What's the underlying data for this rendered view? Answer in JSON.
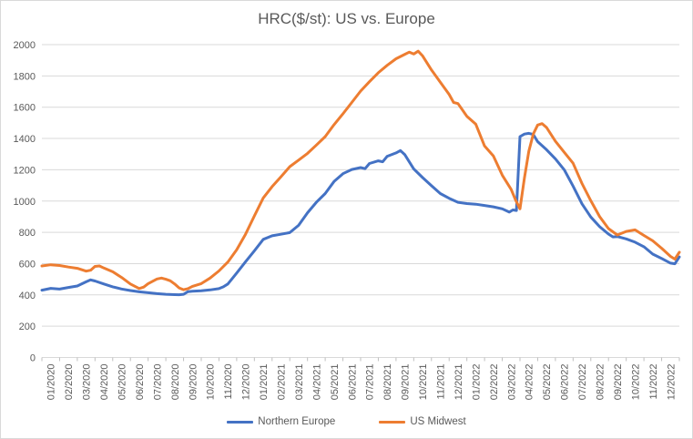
{
  "window": {
    "background": "#ffffff",
    "border_color": "#d9d9d9"
  },
  "chart_data": {
    "type": "line",
    "title": "HRC($/st): US vs. Europe",
    "title_color": "#595959",
    "axis_label_color": "#595959",
    "gridline_color": "#d9d9d9",
    "tick_color": "#bfbfbf",
    "grid": true,
    "legend_position": "bottom",
    "ylim": [
      0,
      2000
    ],
    "y_ticks": [
      0,
      200,
      400,
      600,
      800,
      1000,
      1200,
      1400,
      1600,
      1800,
      2000
    ],
    "x_unit": "month",
    "x_range_months": [
      0,
      36
    ],
    "x_labels": [
      "01/2020",
      "02/2020",
      "03/2020",
      "04/2020",
      "05/2020",
      "06/2020",
      "07/2020",
      "08/2020",
      "09/2020",
      "10/2020",
      "11/2020",
      "12/2020",
      "01/2021",
      "02/2021",
      "03/2021",
      "04/2021",
      "05/2021",
      "06/2021",
      "07/2021",
      "08/2021",
      "09/2021",
      "10/2021",
      "11/2021",
      "12/2021",
      "01/2022",
      "02/2022",
      "03/2022",
      "04/2022",
      "05/2022",
      "06/2022",
      "07/2022",
      "08/2022",
      "09/2022",
      "10/2022",
      "11/2022",
      "12/2022"
    ],
    "series": [
      {
        "name": "Northern Europe",
        "color": "#4472c4",
        "points": [
          [
            0,
            430
          ],
          [
            0.5,
            442
          ],
          [
            1,
            437
          ],
          [
            1.5,
            448
          ],
          [
            2,
            457
          ],
          [
            2.5,
            484
          ],
          [
            2.75,
            496
          ],
          [
            3,
            489
          ],
          [
            3.5,
            470
          ],
          [
            4,
            452
          ],
          [
            4.5,
            438
          ],
          [
            5,
            428
          ],
          [
            5.5,
            420
          ],
          [
            6,
            414
          ],
          [
            6.5,
            408
          ],
          [
            7,
            404
          ],
          [
            7.5,
            402
          ],
          [
            7.75,
            401
          ],
          [
            8,
            404
          ],
          [
            8.25,
            421
          ],
          [
            8.5,
            424
          ],
          [
            9,
            427
          ],
          [
            9.5,
            432
          ],
          [
            10,
            440
          ],
          [
            10.25,
            452
          ],
          [
            10.5,
            470
          ],
          [
            11,
            540
          ],
          [
            11.5,
            612
          ],
          [
            12,
            682
          ],
          [
            12.5,
            755
          ],
          [
            13,
            778
          ],
          [
            13.5,
            788
          ],
          [
            14,
            798
          ],
          [
            14.5,
            845
          ],
          [
            15,
            925
          ],
          [
            15.5,
            992
          ],
          [
            16,
            1048
          ],
          [
            16.5,
            1125
          ],
          [
            17,
            1175
          ],
          [
            17.5,
            1202
          ],
          [
            18,
            1214
          ],
          [
            18.25,
            1207
          ],
          [
            18.5,
            1240
          ],
          [
            19,
            1257
          ],
          [
            19.25,
            1251
          ],
          [
            19.5,
            1286
          ],
          [
            20,
            1308
          ],
          [
            20.25,
            1323
          ],
          [
            20.5,
            1296
          ],
          [
            21,
            1206
          ],
          [
            21.5,
            1150
          ],
          [
            22,
            1098
          ],
          [
            22.5,
            1048
          ],
          [
            23,
            1018
          ],
          [
            23.5,
            992
          ],
          [
            24,
            984
          ],
          [
            24.5,
            980
          ],
          [
            25,
            972
          ],
          [
            25.5,
            963
          ],
          [
            26,
            950
          ],
          [
            26.4,
            929
          ],
          [
            26.6,
            943
          ],
          [
            26.8,
            940
          ],
          [
            27,
            1412
          ],
          [
            27.25,
            1428
          ],
          [
            27.5,
            1433
          ],
          [
            27.75,
            1426
          ],
          [
            28,
            1380
          ],
          [
            28.5,
            1328
          ],
          [
            29,
            1270
          ],
          [
            29.5,
            1200
          ],
          [
            30,
            1096
          ],
          [
            30.5,
            982
          ],
          [
            31,
            898
          ],
          [
            31.5,
            836
          ],
          [
            32,
            789
          ],
          [
            32.25,
            771
          ],
          [
            32.5,
            773
          ],
          [
            33,
            758
          ],
          [
            33.5,
            737
          ],
          [
            34,
            708
          ],
          [
            34.5,
            661
          ],
          [
            35,
            633
          ],
          [
            35.5,
            603
          ],
          [
            35.75,
            599
          ],
          [
            36,
            643
          ]
        ]
      },
      {
        "name": "US Midwest",
        "color": "#ed7d31",
        "points": [
          [
            0,
            585
          ],
          [
            0.5,
            593
          ],
          [
            1,
            588
          ],
          [
            1.5,
            578
          ],
          [
            2,
            570
          ],
          [
            2.5,
            552
          ],
          [
            2.75,
            558
          ],
          [
            3,
            582
          ],
          [
            3.25,
            585
          ],
          [
            3.5,
            572
          ],
          [
            4,
            548
          ],
          [
            4.5,
            512
          ],
          [
            5,
            470
          ],
          [
            5.5,
            441
          ],
          [
            5.75,
            450
          ],
          [
            6,
            472
          ],
          [
            6.5,
            502
          ],
          [
            6.75,
            508
          ],
          [
            7,
            500
          ],
          [
            7.25,
            490
          ],
          [
            7.5,
            470
          ],
          [
            7.75,
            445
          ],
          [
            8,
            433
          ],
          [
            8.25,
            440
          ],
          [
            8.5,
            455
          ],
          [
            9,
            472
          ],
          [
            9.5,
            508
          ],
          [
            10,
            553
          ],
          [
            10.5,
            610
          ],
          [
            11,
            688
          ],
          [
            11.5,
            788
          ],
          [
            12,
            905
          ],
          [
            12.5,
            1020
          ],
          [
            13,
            1092
          ],
          [
            13.5,
            1155
          ],
          [
            14,
            1220
          ],
          [
            14.5,
            1262
          ],
          [
            15,
            1305
          ],
          [
            15.5,
            1358
          ],
          [
            16,
            1412
          ],
          [
            16.5,
            1488
          ],
          [
            17,
            1558
          ],
          [
            17.5,
            1630
          ],
          [
            18,
            1703
          ],
          [
            18.5,
            1763
          ],
          [
            19,
            1820
          ],
          [
            19.5,
            1868
          ],
          [
            20,
            1910
          ],
          [
            20.5,
            1938
          ],
          [
            20.75,
            1952
          ],
          [
            21,
            1940
          ],
          [
            21.25,
            1958
          ],
          [
            21.5,
            1928
          ],
          [
            22,
            1838
          ],
          [
            22.5,
            1760
          ],
          [
            23,
            1682
          ],
          [
            23.25,
            1630
          ],
          [
            23.5,
            1623
          ],
          [
            24,
            1542
          ],
          [
            24.5,
            1492
          ],
          [
            25,
            1352
          ],
          [
            25.5,
            1288
          ],
          [
            26,
            1165
          ],
          [
            26.5,
            1075
          ],
          [
            26.75,
            1008
          ],
          [
            27,
            950
          ],
          [
            27.25,
            1148
          ],
          [
            27.5,
            1318
          ],
          [
            27.75,
            1428
          ],
          [
            28,
            1486
          ],
          [
            28.25,
            1495
          ],
          [
            28.5,
            1470
          ],
          [
            29,
            1382
          ],
          [
            29.5,
            1312
          ],
          [
            30,
            1242
          ],
          [
            30.5,
            1112
          ],
          [
            31,
            1002
          ],
          [
            31.5,
            900
          ],
          [
            32,
            824
          ],
          [
            32.5,
            783
          ],
          [
            33,
            806
          ],
          [
            33.5,
            816
          ],
          [
            34,
            780
          ],
          [
            34.5,
            746
          ],
          [
            35,
            698
          ],
          [
            35.5,
            646
          ],
          [
            35.75,
            629
          ],
          [
            36,
            673
          ]
        ]
      }
    ]
  }
}
